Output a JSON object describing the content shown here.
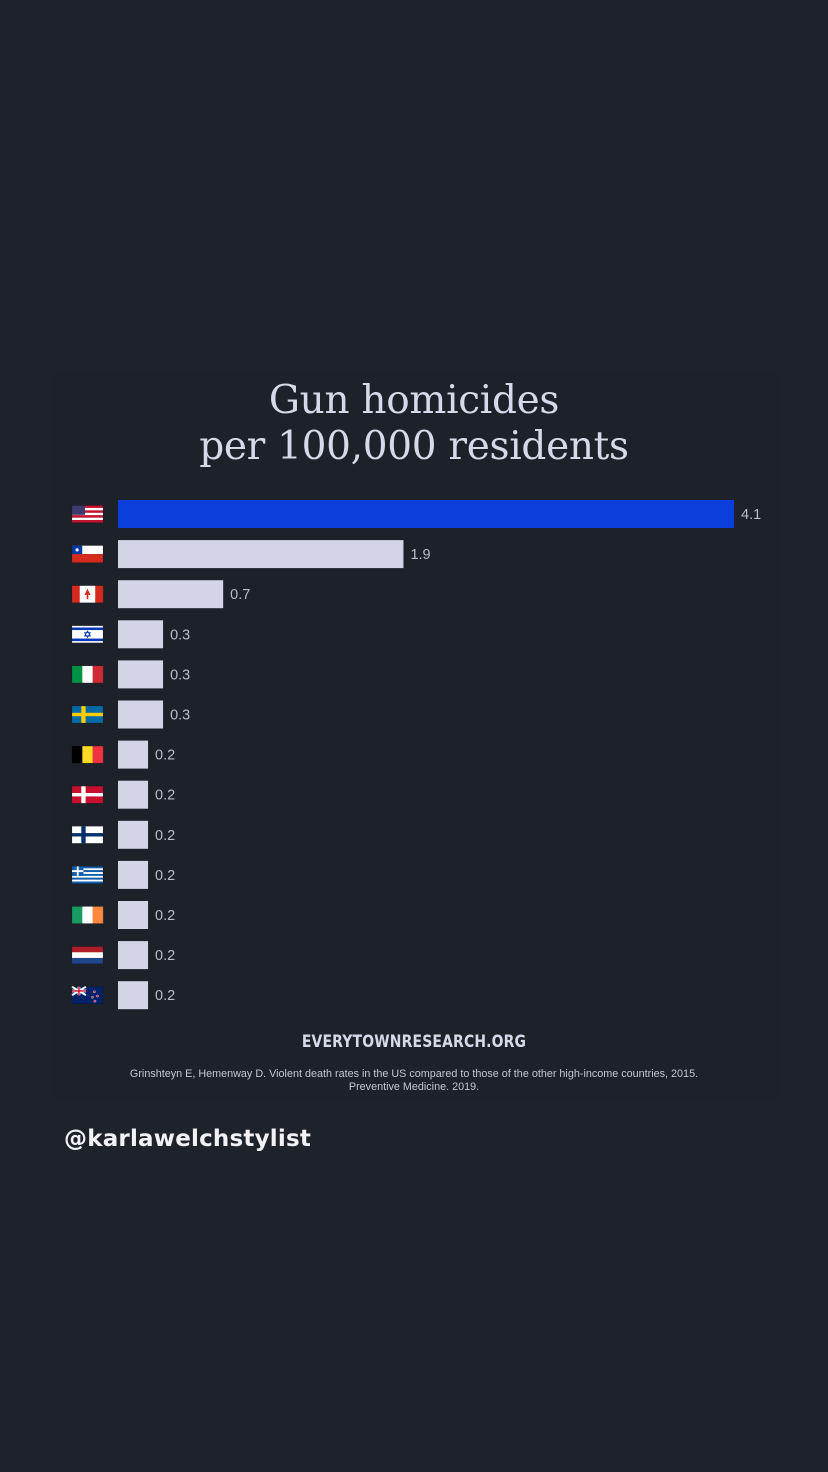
{
  "chart_data": {
    "type": "bar",
    "orientation": "horizontal",
    "title": "Gun homicides per 100,000 residents",
    "title_lines": [
      "Gun homicides",
      "per 100,000 residents"
    ],
    "categories": [
      "United States",
      "Chile",
      "Canada",
      "Israel",
      "Italy",
      "Sweden",
      "Belgium",
      "Denmark",
      "Finland",
      "Greece",
      "Ireland",
      "Netherlands",
      "New Zealand"
    ],
    "flags": [
      "us-flag-icon",
      "chile-flag-icon",
      "canada-flag-icon",
      "israel-flag-icon",
      "italy-flag-icon",
      "sweden-flag-icon",
      "belgium-flag-icon",
      "denmark-flag-icon",
      "finland-flag-icon",
      "greece-flag-icon",
      "ireland-flag-icon",
      "netherlands-flag-icon",
      "new-zealand-flag-icon"
    ],
    "values": [
      4.1,
      1.9,
      0.7,
      0.3,
      0.3,
      0.3,
      0.2,
      0.2,
      0.2,
      0.2,
      0.2,
      0.2,
      0.2
    ],
    "value_labels": [
      "4.1",
      "1.9",
      "0.7",
      "0.3",
      "0.3",
      "0.3",
      "0.2",
      "0.2",
      "0.2",
      "0.2",
      "0.2",
      "0.2",
      "0.2"
    ],
    "xlim": [
      0,
      4.1
    ],
    "grid": false,
    "legend": "none",
    "colors": {
      "highlight": "#0b3fdc",
      "default": "#d3d5e7",
      "label": "#b9bccb"
    }
  },
  "source": {
    "site": "EVERYTOWNRESEARCH.ORG",
    "citation_lines": [
      "Grinshteyn E, Hemenway D. Violent death rates in the US compared to those of the other high-income countries, 2015.",
      "Preventive Medicine. 2019."
    ]
  },
  "overlay": {
    "handle": "@karlawelchstylist"
  },
  "colors": {
    "background": "#1e222b",
    "title": "#d6d9e9",
    "handle": "#f2f2f4"
  }
}
